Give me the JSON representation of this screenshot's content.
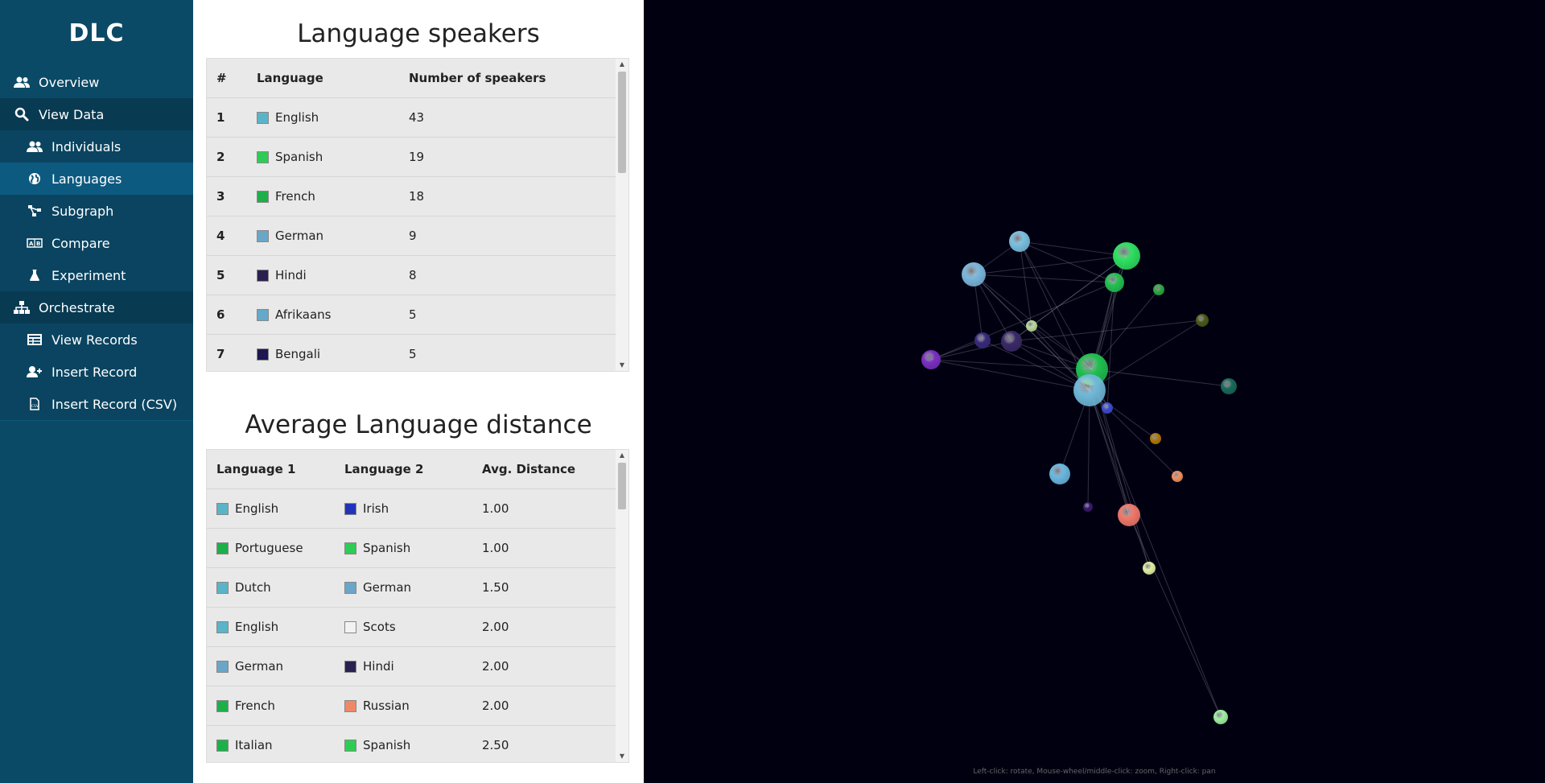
{
  "app": {
    "title": "DLC"
  },
  "sidebar": {
    "items": [
      {
        "label": "Overview",
        "icon": "users-icon"
      },
      {
        "label": "View Data",
        "icon": "search-icon"
      },
      {
        "label": "Individuals",
        "icon": "users-icon"
      },
      {
        "label": "Languages",
        "icon": "globe-icon"
      },
      {
        "label": "Subgraph",
        "icon": "subgraph-icon"
      },
      {
        "label": "Compare",
        "icon": "compare-icon"
      },
      {
        "label": "Experiment",
        "icon": "flask-icon"
      },
      {
        "label": "Orchestrate",
        "icon": "sitemap-icon"
      },
      {
        "label": "View Records",
        "icon": "table-icon"
      },
      {
        "label": "Insert Record",
        "icon": "user-plus-icon"
      },
      {
        "label": "Insert Record (CSV)",
        "icon": "csv-file-icon"
      }
    ]
  },
  "speakers": {
    "title": "Language speakers",
    "headers": [
      "#",
      "Language",
      "Number of speakers"
    ],
    "rows": [
      {
        "rank": "1",
        "language": "English",
        "count": "43",
        "color": "#5ab4c8"
      },
      {
        "rank": "2",
        "language": "Spanish",
        "count": "19",
        "color": "#2ecc55"
      },
      {
        "rank": "3",
        "language": "French",
        "count": "18",
        "color": "#1db04a"
      },
      {
        "rank": "4",
        "language": "German",
        "count": "9",
        "color": "#6aa6c8"
      },
      {
        "rank": "5",
        "language": "Hindi",
        "count": "8",
        "color": "#2a2050"
      },
      {
        "rank": "6",
        "language": "Afrikaans",
        "count": "5",
        "color": "#64a8cc"
      },
      {
        "rank": "7",
        "language": "Bengali",
        "count": "5",
        "color": "#1e1650"
      }
    ]
  },
  "distance": {
    "title": "Average Language distance",
    "headers": [
      "Language 1",
      "Language 2",
      "Avg. Distance"
    ],
    "rows": [
      {
        "l1": "English",
        "c1": "#5ab4c8",
        "l2": "Irish",
        "c2": "#2233bb",
        "d": "1.00"
      },
      {
        "l1": "Portuguese",
        "c1": "#1db04a",
        "l2": "Spanish",
        "c2": "#2ecc55",
        "d": "1.00"
      },
      {
        "l1": "Dutch",
        "c1": "#5ab4c8",
        "l2": "German",
        "c2": "#6aa6c8",
        "d": "1.50"
      },
      {
        "l1": "English",
        "c1": "#5ab4c8",
        "l2": "Scots",
        "c2": "#f2f2f2",
        "d": "2.00"
      },
      {
        "l1": "German",
        "c1": "#6aa6c8",
        "l2": "Hindi",
        "c2": "#2a2050",
        "d": "2.00"
      },
      {
        "l1": "French",
        "c1": "#1db04a",
        "l2": "Russian",
        "c2": "#ee8866",
        "d": "2.00"
      },
      {
        "l1": "Italian",
        "c1": "#1db04a",
        "l2": "Spanish",
        "c2": "#2ecc55",
        "d": "2.50"
      }
    ]
  },
  "graph": {
    "hint": "Left-click: rotate, Mouse-wheel/middle-click: zoom, Right-click: pan",
    "background": "#000011"
  }
}
